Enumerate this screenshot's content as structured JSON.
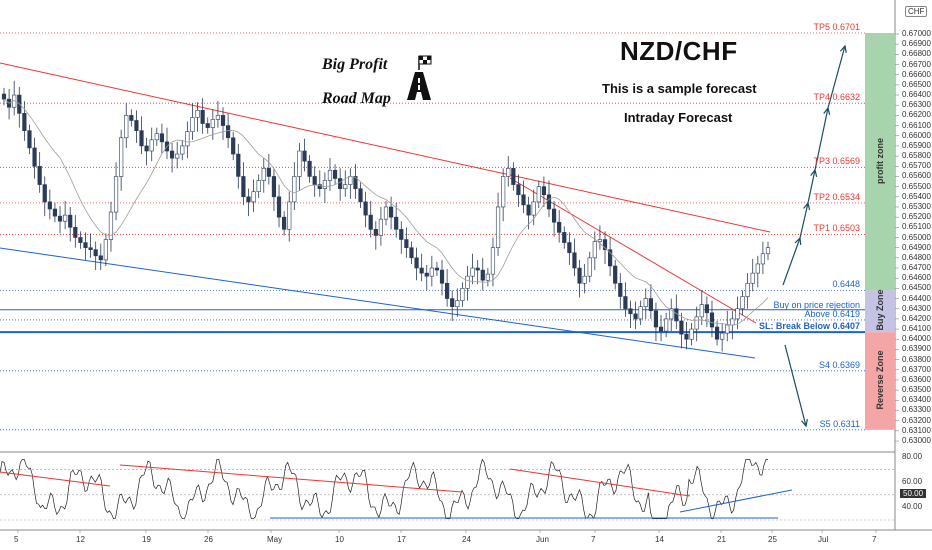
{
  "title": "NZD/CHF",
  "subtitle1": "This is a sample forecast",
  "subtitle2": "Intraday Forecast",
  "logo_line1": "Big Profit",
  "logo_line2": "Road Map",
  "currency": "CHF",
  "levels": [
    {
      "label": "TP5 0.6701",
      "value": 0.6701,
      "color": "#e53935"
    },
    {
      "label": "TP4 0.6632",
      "value": 0.6632,
      "color": "#e53935"
    },
    {
      "label": "TP3 0.6569",
      "value": 0.6569,
      "color": "#e53935"
    },
    {
      "label": "TP2 0.6534",
      "value": 0.6534,
      "color": "#e53935"
    },
    {
      "label": "TP1 0.6503",
      "value": 0.6503,
      "color": "#e53935"
    },
    {
      "label": "0.6448",
      "value": 0.6448,
      "color": "#1e63c6"
    },
    {
      "label": "Buy on price rejection",
      "value": 0.6429,
      "color": "#1e63c6"
    },
    {
      "label": "Above 0.6419",
      "value": 0.6419,
      "color": "#1e63c6"
    },
    {
      "label": "SL: Break Below 0.6407",
      "value": 0.6407,
      "color": "#1e63c6"
    },
    {
      "label": "S4 0.6369",
      "value": 0.6369,
      "color": "#1e63c6"
    },
    {
      "label": "S5 0.6311",
      "value": 0.6311,
      "color": "#1e63c6"
    }
  ],
  "zones": [
    {
      "label": "profit zone",
      "from": 0.6448,
      "to": 0.6701,
      "color": "#a7d3ad"
    },
    {
      "label": "Buy Zone",
      "from": 0.6407,
      "to": 0.6448,
      "color": "#c5c3e3"
    },
    {
      "label": "Reverse Zone",
      "from": 0.6311,
      "to": 0.6407,
      "color": "#f4a6a6"
    }
  ],
  "price_ticks": [
    "0.67000",
    "0.66900",
    "0.66800",
    "0.66700",
    "0.66600",
    "0.66500",
    "0.66400",
    "0.66300",
    "0.66200",
    "0.66100",
    "0.66000",
    "0.65900",
    "0.65800",
    "0.65700",
    "0.65600",
    "0.65500",
    "0.65400",
    "0.65300",
    "0.65200",
    "0.65100",
    "0.65000",
    "0.64900",
    "0.64800",
    "0.64700",
    "0.64600",
    "0.64500",
    "0.64400",
    "0.64300",
    "0.64200",
    "0.64100",
    "0.64000",
    "0.63900",
    "0.63800",
    "0.63700",
    "0.63600",
    "0.63500",
    "0.63400",
    "0.63300",
    "0.63200",
    "0.63100",
    "0.63000"
  ],
  "osc_ticks": [
    "80.00",
    "60.00",
    "40.00"
  ],
  "osc_badge": "50.00",
  "x_labels": [
    "5",
    "12",
    "19",
    "26",
    "May",
    "10",
    "17",
    "24",
    "Jun",
    "7",
    "14",
    "21",
    "25",
    "Jul",
    "7"
  ],
  "chart_data": {
    "type": "candlestick",
    "symbol": "NZD/CHF",
    "ylim": [
      0.63,
      0.671
    ],
    "closes": [
      0.6636,
      0.6628,
      0.664,
      0.6622,
      0.6605,
      0.6588,
      0.657,
      0.6552,
      0.6535,
      0.6528,
      0.6521,
      0.6516,
      0.6522,
      0.651,
      0.65,
      0.6495,
      0.649,
      0.6488,
      0.6482,
      0.6478,
      0.6498,
      0.6525,
      0.656,
      0.6598,
      0.662,
      0.6615,
      0.6605,
      0.659,
      0.6585,
      0.6596,
      0.6602,
      0.6594,
      0.6585,
      0.6578,
      0.6582,
      0.659,
      0.6604,
      0.6618,
      0.6625,
      0.6612,
      0.6608,
      0.6616,
      0.662,
      0.661,
      0.6598,
      0.6582,
      0.656,
      0.654,
      0.6535,
      0.6545,
      0.6556,
      0.6568,
      0.656,
      0.654,
      0.652,
      0.6508,
      0.6535,
      0.656,
      0.6585,
      0.6575,
      0.656,
      0.6552,
      0.6548,
      0.6556,
      0.6566,
      0.6558,
      0.6548,
      0.6552,
      0.656,
      0.6548,
      0.6535,
      0.6522,
      0.6508,
      0.6502,
      0.6518,
      0.653,
      0.652,
      0.6508,
      0.6498,
      0.649,
      0.648,
      0.647,
      0.6465,
      0.6462,
      0.647,
      0.6468,
      0.6455,
      0.644,
      0.6432,
      0.6438,
      0.645,
      0.6462,
      0.647,
      0.6468,
      0.6458,
      0.6464,
      0.649,
      0.653,
      0.656,
      0.6568,
      0.6552,
      0.6542,
      0.6532,
      0.6522,
      0.6535,
      0.655,
      0.6542,
      0.6528,
      0.6515,
      0.6505,
      0.6495,
      0.6485,
      0.647,
      0.6455,
      0.6462,
      0.648,
      0.6496,
      0.6498,
      0.6488,
      0.6472,
      0.6455,
      0.6442,
      0.643,
      0.6425,
      0.642,
      0.6432,
      0.644,
      0.6428,
      0.6412,
      0.6408,
      0.642,
      0.643,
      0.6418,
      0.6405,
      0.64,
      0.641,
      0.6422,
      0.6434,
      0.6426,
      0.6412,
      0.64,
      0.6406,
      0.6414,
      0.642,
      0.643,
      0.6442,
      0.6455,
      0.6465,
      0.6474,
      0.6484,
      0.649
    ]
  }
}
